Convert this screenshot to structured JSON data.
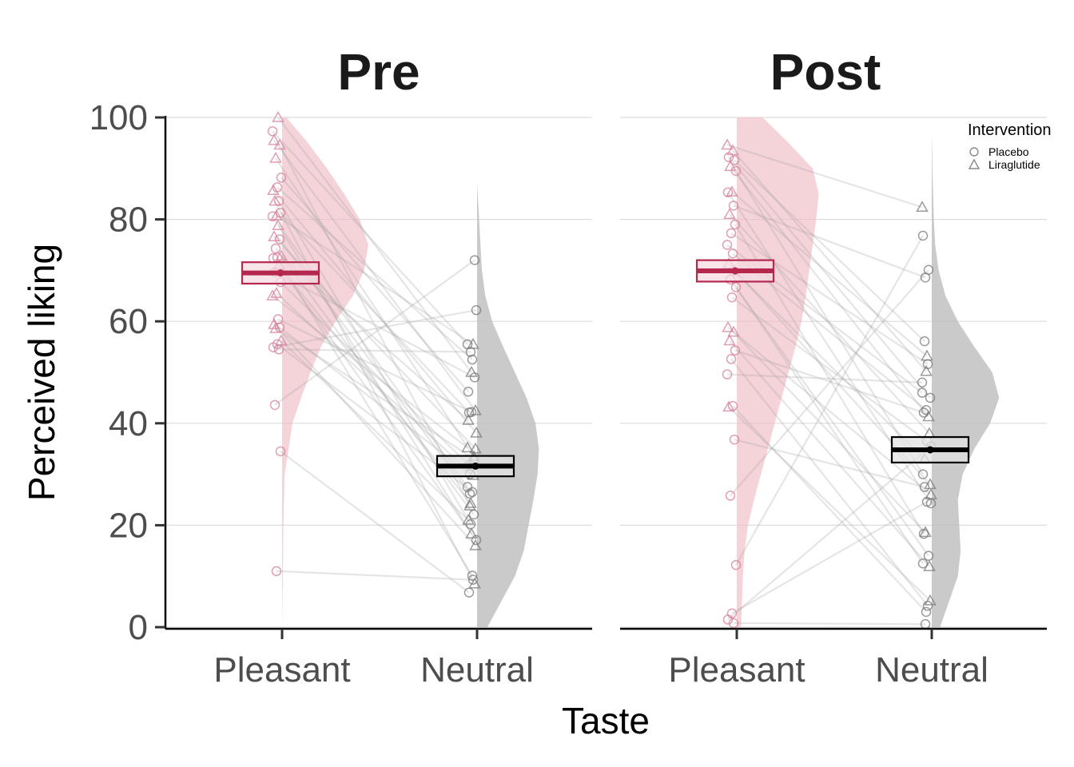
{
  "chart_data": {
    "type": "raincloud",
    "xlabel": "Taste",
    "ylabel": "Perceived liking",
    "ylim": [
      0,
      100
    ],
    "yticks": [
      0,
      20,
      40,
      60,
      80,
      100
    ],
    "yticks_text": [
      "0",
      "20",
      "40",
      "60",
      "80",
      "100"
    ],
    "categories": [
      "Pleasant",
      "Neutral"
    ],
    "colors": {
      "Pleasant": "#b5284e",
      "Neutral": "#000000",
      "Pleasant_fill": "#eebbc5",
      "Neutral_fill": "#bdbdbd"
    },
    "legend": {
      "title": "Intervention",
      "position": "top-right",
      "entries": [
        {
          "label": "Placebo",
          "shape": "circle"
        },
        {
          "label": "Liraglutide",
          "shape": "triangle"
        }
      ]
    },
    "facets": [
      {
        "title": "Pre",
        "summary": [
          {
            "category": "Pleasant",
            "mean": 69.5,
            "lower": 67.4,
            "upper": 71.6
          },
          {
            "category": "Neutral",
            "mean": 31.6,
            "lower": 29.6,
            "upper": 33.6
          }
        ],
        "density": {
          "Pleasant": [
            [
              0,
              0
            ],
            [
              10,
              0.01
            ],
            [
              20,
              0.015
            ],
            [
              30,
              0.03
            ],
            [
              40,
              0.12
            ],
            [
              45,
              0.22
            ],
            [
              50,
              0.33
            ],
            [
              55,
              0.45
            ],
            [
              60,
              0.62
            ],
            [
              65,
              0.82
            ],
            [
              70,
              0.95
            ],
            [
              75,
              1.0
            ],
            [
              80,
              0.9
            ],
            [
              85,
              0.72
            ],
            [
              90,
              0.52
            ],
            [
              95,
              0.3
            ],
            [
              100,
              0.05
            ]
          ],
          "Neutral": [
            [
              0,
              0.15
            ],
            [
              5,
              0.35
            ],
            [
              10,
              0.55
            ],
            [
              15,
              0.68
            ],
            [
              20,
              0.75
            ],
            [
              25,
              0.82
            ],
            [
              30,
              0.88
            ],
            [
              35,
              0.9
            ],
            [
              40,
              0.85
            ],
            [
              45,
              0.72
            ],
            [
              50,
              0.55
            ],
            [
              55,
              0.38
            ],
            [
              60,
              0.22
            ],
            [
              65,
              0.12
            ],
            [
              70,
              0.07
            ],
            [
              75,
              0.05
            ],
            [
              80,
              0.03
            ],
            [
              87,
              0
            ]
          ]
        },
        "pairs": [
          {
            "pleasant": 97.3,
            "neutral": 55.5,
            "shape": "circle"
          },
          {
            "pleasant": 100,
            "neutral": 50.0,
            "shape": "triangle"
          },
          {
            "pleasant": 95.5,
            "neutral": 42.5,
            "shape": "triangle"
          },
          {
            "pleasant": 94.6,
            "neutral": 23.8,
            "shape": "triangle"
          },
          {
            "pleasant": 92.0,
            "neutral": 33.5,
            "shape": "triangle"
          },
          {
            "pleasant": 88.2,
            "neutral": 46.2,
            "shape": "circle"
          },
          {
            "pleasant": 86.3,
            "neutral": 52.5,
            "shape": "circle"
          },
          {
            "pleasant": 85.7,
            "neutral": 38.1,
            "shape": "triangle"
          },
          {
            "pleasant": 83.6,
            "neutral": 20.2,
            "shape": "circle"
          },
          {
            "pleasant": 83.6,
            "neutral": 8.5,
            "shape": "triangle"
          },
          {
            "pleasant": 81.3,
            "neutral": 42.1,
            "shape": "circle"
          },
          {
            "pleasant": 80.7,
            "neutral": 55.5,
            "shape": "triangle"
          },
          {
            "pleasant": 80.6,
            "neutral": 27.5,
            "shape": "circle"
          },
          {
            "pleasant": 78.8,
            "neutral": 18.3,
            "shape": "triangle"
          },
          {
            "pleasant": 76.6,
            "neutral": 35.0,
            "shape": "triangle"
          },
          {
            "pleasant": 76.1,
            "neutral": 26.2,
            "shape": "circle"
          },
          {
            "pleasant": 74.3,
            "neutral": 22.1,
            "shape": "circle"
          },
          {
            "pleasant": 72.8,
            "neutral": 40.6,
            "shape": "triangle"
          },
          {
            "pleasant": 72.5,
            "neutral": 10.1,
            "shape": "circle"
          },
          {
            "pleasant": 72.4,
            "neutral": 17.1,
            "shape": "circle"
          },
          {
            "pleasant": 71.0,
            "neutral": 24.3,
            "shape": "triangle"
          },
          {
            "pleasant": 69.6,
            "neutral": 49.0,
            "shape": "circle"
          },
          {
            "pleasant": 67.7,
            "neutral": 31.8,
            "shape": "circle"
          },
          {
            "pleasant": 65.5,
            "neutral": 29.8,
            "shape": "triangle"
          },
          {
            "pleasant": 65.0,
            "neutral": 35.2,
            "shape": "triangle"
          },
          {
            "pleasant": 60.4,
            "neutral": 42.2,
            "shape": "circle"
          },
          {
            "pleasant": 59.4,
            "neutral": 16.0,
            "shape": "triangle"
          },
          {
            "pleasant": 58.8,
            "neutral": 30.0,
            "shape": "circle"
          },
          {
            "pleasant": 58.6,
            "neutral": 33.0,
            "shape": "triangle"
          },
          {
            "pleasant": 56.2,
            "neutral": 21.0,
            "shape": "triangle"
          },
          {
            "pleasant": 55.5,
            "neutral": 26.5,
            "shape": "circle"
          },
          {
            "pleasant": 54.9,
            "neutral": 62.2,
            "shape": "circle"
          },
          {
            "pleasant": 54.5,
            "neutral": 54.0,
            "shape": "circle"
          },
          {
            "pleasant": 43.6,
            "neutral": 72.0,
            "shape": "circle"
          },
          {
            "pleasant": 34.5,
            "neutral": 6.8,
            "shape": "circle"
          },
          {
            "pleasant": 11.0,
            "neutral": 9.3,
            "shape": "circle"
          }
        ]
      },
      {
        "title": "Post",
        "summary": [
          {
            "category": "Pleasant",
            "mean": 69.9,
            "lower": 67.8,
            "upper": 72.0
          },
          {
            "category": "Neutral",
            "mean": 34.8,
            "lower": 32.3,
            "upper": 37.3
          }
        ],
        "density": {
          "Pleasant": [
            [
              0,
              0.05
            ],
            [
              5,
              0.06
            ],
            [
              10,
              0.07
            ],
            [
              15,
              0.09
            ],
            [
              20,
              0.13
            ],
            [
              25,
              0.2
            ],
            [
              30,
              0.28
            ],
            [
              35,
              0.36
            ],
            [
              40,
              0.44
            ],
            [
              45,
              0.52
            ],
            [
              50,
              0.6
            ],
            [
              55,
              0.68
            ],
            [
              60,
              0.75
            ],
            [
              65,
              0.8
            ],
            [
              70,
              0.84
            ],
            [
              75,
              0.88
            ],
            [
              80,
              0.92
            ],
            [
              85,
              0.95
            ],
            [
              90,
              0.88
            ],
            [
              95,
              0.6
            ],
            [
              100,
              0.3
            ]
          ],
          "Neutral": [
            [
              0,
              0.12
            ],
            [
              5,
              0.25
            ],
            [
              10,
              0.38
            ],
            [
              15,
              0.42
            ],
            [
              20,
              0.4
            ],
            [
              25,
              0.38
            ],
            [
              30,
              0.45
            ],
            [
              35,
              0.62
            ],
            [
              40,
              0.85
            ],
            [
              45,
              0.98
            ],
            [
              50,
              0.88
            ],
            [
              55,
              0.62
            ],
            [
              60,
              0.38
            ],
            [
              65,
              0.2
            ],
            [
              70,
              0.1
            ],
            [
              75,
              0.05
            ],
            [
              80,
              0.03
            ],
            [
              85,
              0.02
            ],
            [
              90,
              0.01
            ],
            [
              97,
              0
            ]
          ]
        },
        "pairs": [
          {
            "pleasant": 94.6,
            "neutral": 82.4,
            "shape": "triangle"
          },
          {
            "pleasant": 93.5,
            "neutral": 50.2,
            "shape": "triangle"
          },
          {
            "pleasant": 92.2,
            "neutral": 45.0,
            "shape": "circle"
          },
          {
            "pleasant": 91.6,
            "neutral": 56.1,
            "shape": "circle"
          },
          {
            "pleasant": 90.4,
            "neutral": 41.3,
            "shape": "triangle"
          },
          {
            "pleasant": 89.5,
            "neutral": 30.0,
            "shape": "circle"
          },
          {
            "pleasant": 85.4,
            "neutral": 53.2,
            "shape": "triangle"
          },
          {
            "pleasant": 85.3,
            "neutral": 24.3,
            "shape": "circle"
          },
          {
            "pleasant": 82.7,
            "neutral": 68.6,
            "shape": "circle"
          },
          {
            "pleasant": 81.0,
            "neutral": 38.0,
            "shape": "triangle"
          },
          {
            "pleasant": 79.0,
            "neutral": 18.3,
            "shape": "circle"
          },
          {
            "pleasant": 77.3,
            "neutral": 51.6,
            "shape": "circle"
          },
          {
            "pleasant": 75.0,
            "neutral": 46.0,
            "shape": "circle"
          },
          {
            "pleasant": 73.3,
            "neutral": 42.6,
            "shape": "circle"
          },
          {
            "pleasant": 71.3,
            "neutral": 28.0,
            "shape": "triangle"
          },
          {
            "pleasant": 69.9,
            "neutral": 33.0,
            "shape": "triangle"
          },
          {
            "pleasant": 68.2,
            "neutral": 14.0,
            "shape": "circle"
          },
          {
            "pleasant": 66.7,
            "neutral": 12.5,
            "shape": "circle"
          },
          {
            "pleasant": 64.7,
            "neutral": 36.5,
            "shape": "circle"
          },
          {
            "pleasant": 58.8,
            "neutral": 26.0,
            "shape": "triangle"
          },
          {
            "pleasant": 57.9,
            "neutral": 18.6,
            "shape": "triangle"
          },
          {
            "pleasant": 56.2,
            "neutral": 11.9,
            "shape": "triangle"
          },
          {
            "pleasant": 54.3,
            "neutral": 42.1,
            "shape": "circle"
          },
          {
            "pleasant": 52.6,
            "neutral": 4.2,
            "shape": "circle"
          },
          {
            "pleasant": 49.6,
            "neutral": 48.0,
            "shape": "circle"
          },
          {
            "pleasant": 43.4,
            "neutral": 3.0,
            "shape": "circle"
          },
          {
            "pleasant": 43.2,
            "neutral": 5.2,
            "shape": "triangle"
          },
          {
            "pleasant": 36.8,
            "neutral": 27.5,
            "shape": "circle"
          },
          {
            "pleasant": 25.8,
            "neutral": 70.1,
            "shape": "circle"
          },
          {
            "pleasant": 12.2,
            "neutral": 76.8,
            "shape": "circle"
          },
          {
            "pleasant": 2.7,
            "neutral": 24.6,
            "shape": "circle"
          },
          {
            "pleasant": 1.5,
            "neutral": 35.5,
            "shape": "circle"
          },
          {
            "pleasant": 0.8,
            "neutral": 0.6,
            "shape": "circle"
          }
        ]
      }
    ]
  }
}
